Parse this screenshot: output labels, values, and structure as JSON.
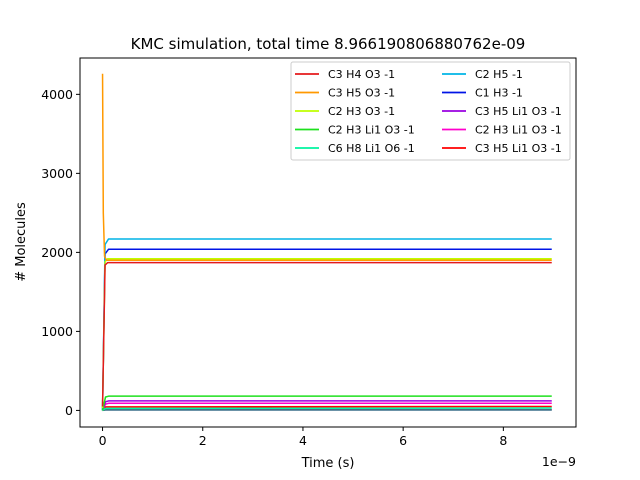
{
  "chart_data": {
    "type": "line",
    "title": "KMC simulation, total time 8.966190806880762e-09",
    "xlabel": "Time (s)",
    "ylabel": "# Molecules",
    "x_offset_label": "1e−9",
    "xlim": [
      -0.45,
      9.45
    ],
    "ylim": [
      -210,
      4460
    ],
    "x_ticks": [
      0,
      2,
      4,
      6,
      8
    ],
    "x_tick_labels": [
      "0",
      "2",
      "4",
      "6",
      "8"
    ],
    "y_ticks": [
      0,
      1000,
      2000,
      3000,
      4000
    ],
    "y_tick_labels": [
      "0",
      "1000",
      "2000",
      "3000",
      "4000"
    ],
    "grid": false,
    "legend_position": "top-right",
    "legend_columns": 2,
    "x_end": 8.966,
    "series": [
      {
        "name": "C3 H4 O3 -1",
        "color": "#e41a1c",
        "points": [
          [
            0,
            50
          ],
          [
            0.05,
            1840
          ],
          [
            0.1,
            1870
          ],
          [
            8.966,
            1870
          ]
        ]
      },
      {
        "name": "C3 H5 O3 -1",
        "color": "#ff9900",
        "points": [
          [
            0,
            4260
          ],
          [
            0.015,
            2500
          ],
          [
            0.04,
            1950
          ],
          [
            0.08,
            1900
          ],
          [
            8.966,
            1900
          ]
        ]
      },
      {
        "name": "C2 H3 O3 -1",
        "color": "#bfff00",
        "points": [
          [
            0,
            30
          ],
          [
            0.05,
            1880
          ],
          [
            0.1,
            1920
          ],
          [
            8.966,
            1920
          ]
        ]
      },
      {
        "name": "C2 H3 Li1 O3 -1",
        "color": "#1ee01e",
        "points": [
          [
            0,
            0
          ],
          [
            0.06,
            170
          ],
          [
            0.12,
            180
          ],
          [
            8.966,
            180
          ]
        ]
      },
      {
        "name": "C6 H8 Li1 O6 -1",
        "color": "#00f5a0",
        "points": [
          [
            0,
            0
          ],
          [
            0.06,
            25
          ],
          [
            8.966,
            30
          ]
        ]
      },
      {
        "name": "C2 H5 -1",
        "color": "#00b4e6",
        "points": [
          [
            0,
            0
          ],
          [
            0.05,
            2100
          ],
          [
            0.12,
            2170
          ],
          [
            8.966,
            2170
          ]
        ]
      },
      {
        "name": "C1 H3 -1",
        "color": "#0014e6",
        "points": [
          [
            0,
            0
          ],
          [
            0.05,
            1980
          ],
          [
            0.12,
            2040
          ],
          [
            8.966,
            2040
          ]
        ]
      },
      {
        "name": "C3 H5 Li1 O3 -1",
        "color": "#9a00e0",
        "points": [
          [
            0,
            0
          ],
          [
            0.06,
            110
          ],
          [
            0.12,
            120
          ],
          [
            8.966,
            120
          ]
        ]
      },
      {
        "name": "C2 H3 Li1 O3 -1",
        "color": "#ff00cc",
        "points": [
          [
            0,
            0
          ],
          [
            0.06,
            80
          ],
          [
            0.12,
            90
          ],
          [
            8.966,
            90
          ]
        ]
      },
      {
        "name": "C3 H5 Li1 O3 -1",
        "color": "#ff0000",
        "points": [
          [
            0,
            0
          ],
          [
            0.06,
            45
          ],
          [
            8.966,
            50
          ]
        ]
      },
      {
        "name": "",
        "color": "#3a6f8a",
        "points": [
          [
            0,
            0
          ],
          [
            0.06,
            5
          ],
          [
            8.966,
            5
          ]
        ]
      },
      {
        "name": "",
        "color": "#6a6a6a",
        "points": [
          [
            0,
            0
          ],
          [
            0.06,
            10
          ],
          [
            8.966,
            10
          ]
        ]
      }
    ]
  }
}
